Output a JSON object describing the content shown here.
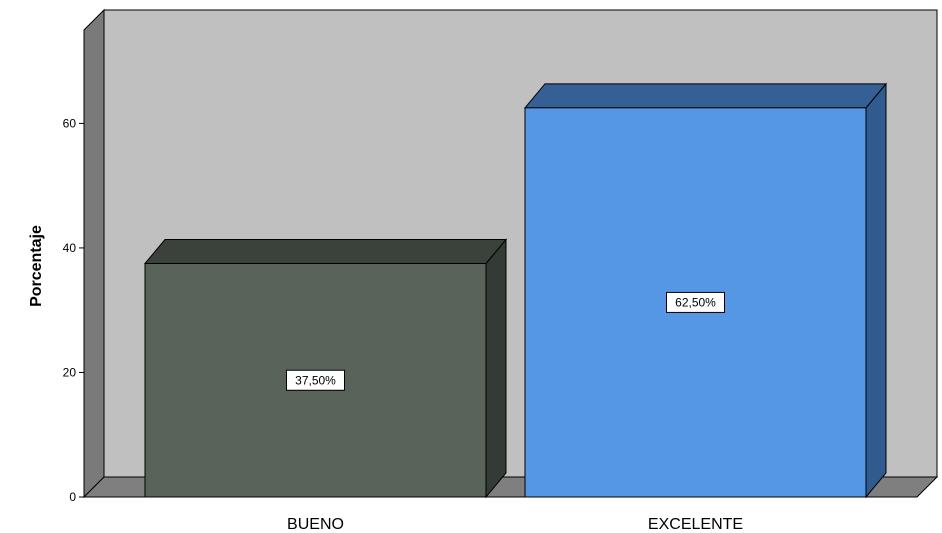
{
  "chart_data": {
    "type": "bar",
    "categories": [
      "BUENO",
      "EXCELENTE"
    ],
    "values": [
      37.5,
      62.5
    ],
    "data_labels": [
      "37,50%",
      "62,50%"
    ],
    "ylabel": "Porcentaje",
    "ylim": [
      0,
      75
    ],
    "yticks": [
      0,
      20,
      40,
      60
    ],
    "bar_colors": [
      "#59635a",
      "#5596e5"
    ],
    "bar_top_colors": [
      "#3b423c",
      "#355f95"
    ],
    "bar_side_colors": [
      "#343a35",
      "#315a8e"
    ],
    "wall_color": "#c0c0c0",
    "side_wall_color": "#7a7a7a",
    "floor_color": "#7f7f7f",
    "three_d": true,
    "grid": false,
    "legend": "none"
  }
}
